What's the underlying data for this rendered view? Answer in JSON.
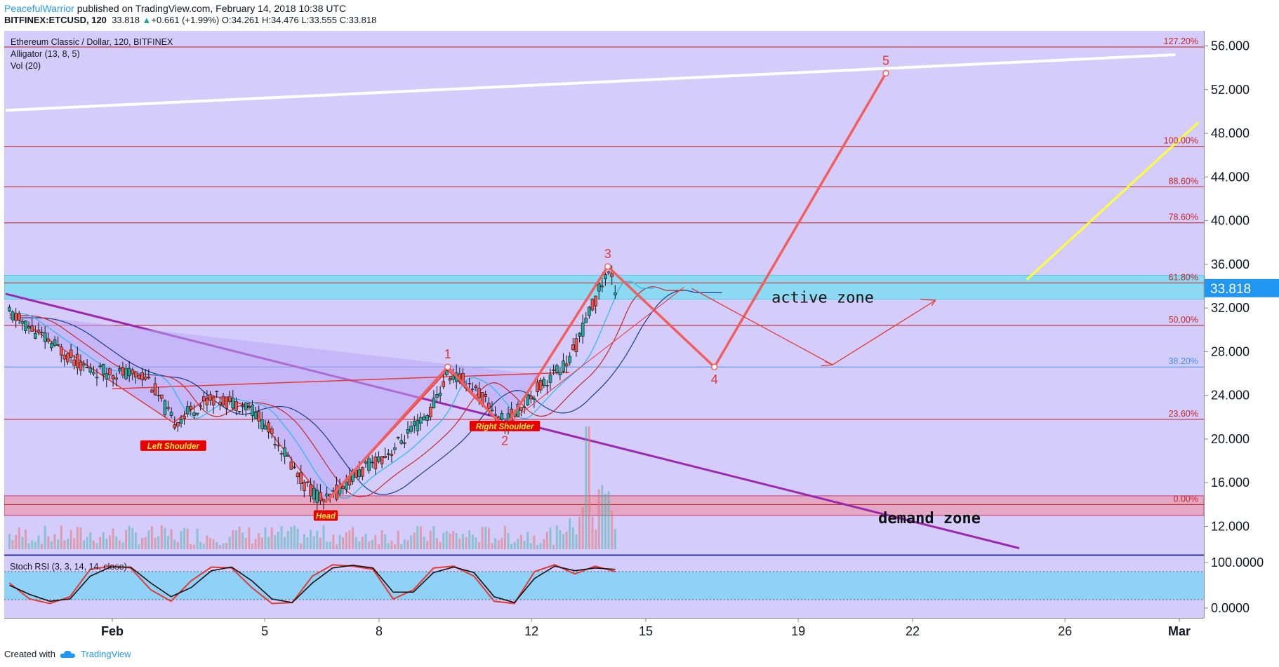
{
  "header": {
    "author": "PeacefulWarrior",
    "published": "published on TradingView.com, February 14, 2018 10:38 UTC",
    "symbol": "BITFINEX:ETCUSD, 120",
    "last": "33.818",
    "change": "+0.661 (+1.99%)",
    "ohlc": "O:34.261 H:34.476 L:33.555 C:33.818"
  },
  "legend": {
    "title": "Ethereum Classic / Dollar, 120, BITFINEX",
    "alligator": "Alligator (13, 8, 5)",
    "volume": "Vol (20)",
    "stoch": "Stoch RSI (3, 3, 14, 14, close)"
  },
  "footer": {
    "created_with": "Created with",
    "brand": "TradingView"
  },
  "colors": {
    "background": "#d4ccfa",
    "up_candle": "#26a69a",
    "down_candle": "#ef5350",
    "fib_line": "#b71c1c",
    "price_badge": "#2196f3",
    "wave": "#f25d5d",
    "trendline": "#9c27b0",
    "active_zone": "#7fdcf2",
    "demand_zone": "#e8a0b8"
  },
  "chart_data": {
    "type": "candlestick",
    "title": "Ethereum Classic / Dollar, 120, BITFINEX",
    "y_ticks": [
      "56.000",
      "52.000",
      "48.000",
      "44.000",
      "40.000",
      "36.000",
      "32.000",
      "28.000",
      "24.000",
      "20.000",
      "16.000",
      "12.000"
    ],
    "y_range": [
      9.5,
      58.5
    ],
    "x_ticks": [
      "Feb",
      "5",
      "8",
      "12",
      "15",
      "19",
      "22",
      "26",
      "Mar"
    ],
    "x_tick_day_index": [
      0,
      4,
      7,
      11,
      14,
      18,
      21,
      25,
      28
    ],
    "x_range_day_index": [
      -2.8,
      28
    ],
    "last_price": "33.818",
    "fib_levels": [
      {
        "label": "127.20%",
        "value": 55.9
      },
      {
        "label": "100.00%",
        "value": 46.8
      },
      {
        "label": "88.60%",
        "value": 43.1
      },
      {
        "label": "78.60%",
        "value": 39.8
      },
      {
        "label": "61.80%",
        "value": 34.3
      },
      {
        "label": "50.00%",
        "value": 30.4
      },
      {
        "label": "38.20%",
        "value": 26.6
      },
      {
        "label": "23.60%",
        "value": 21.8
      },
      {
        "label": "0.00%",
        "value": 14.0
      }
    ],
    "zones": [
      {
        "label": "active zone",
        "from": 32.8,
        "to": 35.0
      },
      {
        "label": "demand zone",
        "from": 13.0,
        "to": 14.8
      }
    ],
    "pattern_labels": [
      "Left Shoulder",
      "Head",
      "Right Shoulder"
    ],
    "wave_labels": [
      "1",
      "2",
      "3",
      "4",
      "5"
    ],
    "wave_points": [
      {
        "label": "1",
        "day": 8.8,
        "price": 26.6
      },
      {
        "label": "2",
        "day": 10.3,
        "price": 21.0
      },
      {
        "label": "3",
        "day": 13.0,
        "price": 35.8
      },
      {
        "label": "4",
        "day": 15.8,
        "price": 26.6
      },
      {
        "label": "5",
        "day": 20.3,
        "price": 53.5
      }
    ],
    "path_points": [
      {
        "day": -2.7,
        "price": 31.5
      },
      {
        "day": -0.6,
        "price": 26.3
      },
      {
        "day": 0.9,
        "price": 25.8
      },
      {
        "day": 1.6,
        "price": 21.5
      },
      {
        "day": 2.6,
        "price": 23.8
      },
      {
        "day": 3.6,
        "price": 23.0
      },
      {
        "day": 4.3,
        "price": 20.0
      },
      {
        "day": 5.0,
        "price": 16.0
      },
      {
        "day": 5.6,
        "price": 14.2
      },
      {
        "day": 6.3,
        "price": 16.5
      },
      {
        "day": 7.3,
        "price": 18.9
      },
      {
        "day": 8.3,
        "price": 22.2
      },
      {
        "day": 8.8,
        "price": 25.9
      },
      {
        "day": 9.4,
        "price": 25.1
      },
      {
        "day": 10.3,
        "price": 21.4
      },
      {
        "day": 11.2,
        "price": 24.8
      },
      {
        "day": 12.0,
        "price": 27.2
      },
      {
        "day": 12.6,
        "price": 32.2
      },
      {
        "day": 13.0,
        "price": 35.4
      },
      {
        "day": 13.2,
        "price": 33.8
      }
    ],
    "stoch_rsi": {
      "y_ticks": [
        "100.0000",
        "0.0000"
      ],
      "k": [
        55,
        20,
        10,
        25,
        85,
        92,
        88,
        40,
        15,
        60,
        90,
        88,
        45,
        10,
        12,
        70,
        95,
        92,
        85,
        20,
        40,
        88,
        92,
        70,
        15,
        10,
        80,
        95,
        75,
        92,
        80
      ],
      "d": [
        50,
        30,
        15,
        20,
        70,
        90,
        90,
        55,
        25,
        45,
        82,
        90,
        60,
        20,
        12,
        55,
        88,
        94,
        88,
        35,
        35,
        78,
        90,
        78,
        25,
        12,
        65,
        92,
        82,
        88,
        85
      ]
    }
  }
}
